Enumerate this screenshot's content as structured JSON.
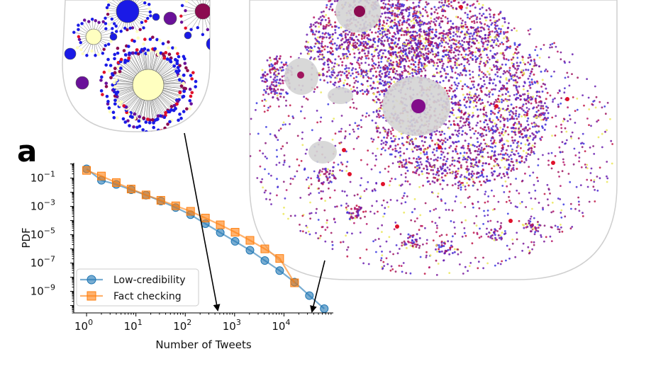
{
  "panel_label": "a",
  "chart_data": {
    "type": "line",
    "xscale": "log",
    "yscale": "log",
    "xlabel": "Number of Tweets",
    "ylabel": "PDF",
    "xlim": [
      0.55,
      100000
    ],
    "ylim": [
      3e-11,
      1.2
    ],
    "x_ticks": [
      {
        "value": 1,
        "base": "10",
        "exp": "0"
      },
      {
        "value": 10,
        "base": "10",
        "exp": "1"
      },
      {
        "value": 100,
        "base": "10",
        "exp": "2"
      },
      {
        "value": 1000,
        "base": "10",
        "exp": "3"
      },
      {
        "value": 10000,
        "base": "10",
        "exp": "4"
      }
    ],
    "y_ticks": [
      {
        "value": 0.1,
        "base": "10",
        "exp": "−1"
      },
      {
        "value": 0.001,
        "base": "10",
        "exp": "−3"
      },
      {
        "value": 1e-05,
        "base": "10",
        "exp": "−5"
      },
      {
        "value": 1e-07,
        "base": "10",
        "exp": "−7"
      },
      {
        "value": 1e-09,
        "base": "10",
        "exp": "−9"
      }
    ],
    "legend_position": "bottom-left",
    "series": [
      {
        "name": "Low-credibility",
        "marker": "circle",
        "color": "#1f77b4",
        "x": [
          1,
          2,
          4,
          8,
          16,
          32,
          64,
          128,
          256,
          512,
          1024,
          2048,
          4096,
          8192,
          16384,
          32768,
          65536
        ],
        "y": [
          0.45,
          0.07,
          0.036,
          0.015,
          0.0062,
          0.0024,
          0.00083,
          0.00026,
          6e-05,
          1.4e-05,
          3.4e-06,
          8e-07,
          1.5e-07,
          2.9e-08,
          4.5e-09,
          5e-10,
          6e-11
        ]
      },
      {
        "name": "Fact checking",
        "marker": "square",
        "color": "#ff7f0e",
        "x": [
          1,
          2,
          4,
          8,
          16,
          32,
          64,
          128,
          256,
          512,
          1024,
          2048,
          4096,
          8192,
          16384
        ],
        "y": [
          0.35,
          0.14,
          0.048,
          0.017,
          0.0065,
          0.0027,
          0.0011,
          0.00045,
          0.00015,
          5e-05,
          1.5e-05,
          4e-06,
          1e-06,
          2.1e-07,
          4e-09
        ]
      }
    ]
  },
  "network_colors": {
    "edge_gray": "#bdbdbd",
    "node_blue": "#1a1ae6",
    "node_purple": "#6a1199",
    "node_maroon": "#8b0a50",
    "node_red": "#e0112b",
    "node_yellow": "#ffffc0"
  }
}
